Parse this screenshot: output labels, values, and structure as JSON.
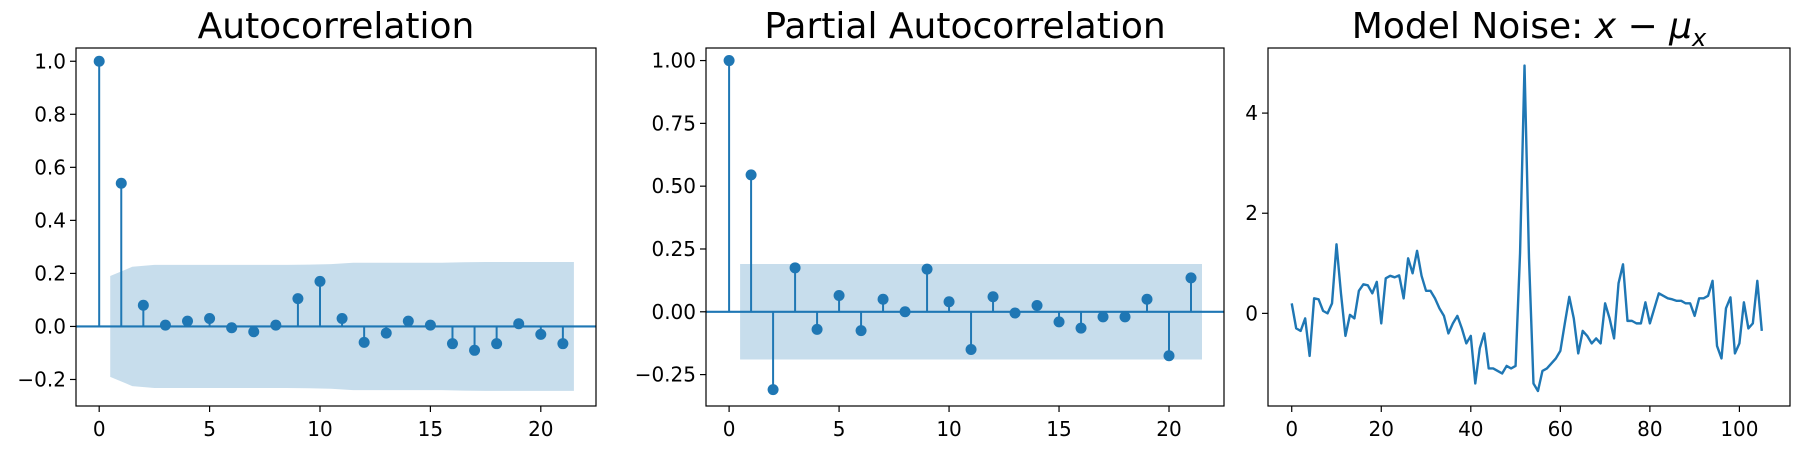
{
  "chart_data": [
    {
      "type": "stem",
      "title": "Autocorrelation",
      "xlabel": "",
      "ylabel": "",
      "xlim": [
        -1.05,
        22.5
      ],
      "ylim": [
        -0.3,
        1.05
      ],
      "xticks": [
        0,
        5,
        10,
        15,
        20
      ],
      "yticks": [
        -0.2,
        0.0,
        0.2,
        0.4,
        0.6,
        0.8,
        1.0
      ],
      "ytick_labels": [
        "−0.2",
        "0.0",
        "0.2",
        "0.4",
        "0.6",
        "0.8",
        "1.0"
      ],
      "xtick_labels": [
        "0",
        "5",
        "10",
        "15",
        "20"
      ],
      "color": "#1f77b4",
      "band_color": "#1f77b4",
      "lags": [
        0,
        1,
        2,
        3,
        4,
        5,
        6,
        7,
        8,
        9,
        10,
        11,
        12,
        13,
        14,
        15,
        16,
        17,
        18,
        19,
        20,
        21
      ],
      "values": [
        1.0,
        0.54,
        0.08,
        0.005,
        0.02,
        0.03,
        -0.005,
        -0.02,
        0.005,
        0.105,
        0.17,
        0.03,
        -0.06,
        -0.025,
        0.02,
        0.005,
        -0.065,
        -0.09,
        -0.065,
        0.01,
        -0.03,
        -0.065
      ],
      "confidence_band": {
        "x": [
          0.5,
          1.5,
          2.5,
          3.5,
          4.5,
          5.5,
          6.5,
          7.5,
          8.5,
          9.5,
          10.5,
          11.5,
          12.5,
          13.5,
          14.5,
          15.5,
          16.5,
          17.5,
          18.5,
          19.5,
          20.5,
          21.5
        ],
        "upper": [
          0.19,
          0.225,
          0.232,
          0.232,
          0.232,
          0.232,
          0.232,
          0.232,
          0.232,
          0.233,
          0.235,
          0.24,
          0.24,
          0.24,
          0.24,
          0.24,
          0.242,
          0.243,
          0.243,
          0.243,
          0.243,
          0.243
        ]
      }
    },
    {
      "type": "stem",
      "title": "Partial Autocorrelation",
      "xlabel": "",
      "ylabel": "",
      "xlim": [
        -1.05,
        22.5
      ],
      "ylim": [
        -0.375,
        1.05
      ],
      "xticks": [
        0,
        5,
        10,
        15,
        20
      ],
      "yticks": [
        -0.25,
        0.0,
        0.25,
        0.5,
        0.75,
        1.0
      ],
      "ytick_labels": [
        "−0.25",
        "0.00",
        "0.25",
        "0.50",
        "0.75",
        "1.00"
      ],
      "xtick_labels": [
        "0",
        "5",
        "10",
        "15",
        "20"
      ],
      "color": "#1f77b4",
      "band_color": "#1f77b4",
      "lags": [
        0,
        1,
        2,
        3,
        4,
        5,
        6,
        7,
        8,
        9,
        10,
        11,
        12,
        13,
        14,
        15,
        16,
        17,
        18,
        19,
        20,
        21
      ],
      "values": [
        1.0,
        0.545,
        -0.31,
        0.175,
        -0.07,
        0.065,
        -0.075,
        0.05,
        0.0,
        0.17,
        0.04,
        -0.15,
        0.06,
        -0.005,
        0.025,
        -0.04,
        -0.065,
        -0.02,
        -0.02,
        0.05,
        -0.175,
        0.135
      ],
      "confidence_band": {
        "x": [
          0.5,
          21.5
        ],
        "upper": [
          0.19,
          0.19
        ]
      }
    },
    {
      "type": "line",
      "title_prefix": "Model Noise: ",
      "title_math": "x − μ",
      "title_subscript": "x",
      "xlabel": "",
      "ylabel": "",
      "xlim": [
        -5.3,
        111.3
      ],
      "ylim": [
        -1.85,
        5.3
      ],
      "xticks": [
        0,
        20,
        40,
        60,
        80,
        100
      ],
      "yticks": [
        0,
        2,
        4
      ],
      "xtick_labels": [
        "0",
        "20",
        "40",
        "60",
        "80",
        "100"
      ],
      "ytick_labels": [
        "0",
        "2",
        "4"
      ],
      "color": "#1f77b4",
      "values": [
        0.2,
        -0.3,
        -0.35,
        -0.1,
        -0.85,
        0.3,
        0.28,
        0.05,
        0.0,
        0.2,
        1.38,
        0.4,
        -0.45,
        -0.03,
        -0.1,
        0.45,
        0.58,
        0.56,
        0.4,
        0.63,
        -0.2,
        0.7,
        0.75,
        0.72,
        0.76,
        0.3,
        1.1,
        0.8,
        1.25,
        0.75,
        0.45,
        0.45,
        0.3,
        0.1,
        -0.05,
        -0.4,
        -0.2,
        -0.05,
        -0.3,
        -0.6,
        -0.45,
        -1.4,
        -0.7,
        -0.4,
        -1.1,
        -1.1,
        -1.15,
        -1.2,
        -1.05,
        -1.1,
        -1.05,
        1.2,
        4.95,
        1.1,
        -1.4,
        -1.55,
        -1.15,
        -1.1,
        -1.0,
        -0.9,
        -0.75,
        -0.2,
        0.33,
        -0.1,
        -0.8,
        -0.35,
        -0.45,
        -0.6,
        -0.5,
        -0.6,
        0.2,
        -0.1,
        -0.5,
        0.6,
        0.98,
        -0.15,
        -0.15,
        -0.2,
        -0.2,
        0.22,
        -0.2,
        0.1,
        0.4,
        0.35,
        0.3,
        0.28,
        0.25,
        0.25,
        0.2,
        0.2,
        -0.05,
        0.3,
        0.3,
        0.35,
        0.65,
        -0.65,
        -0.9,
        0.1,
        0.32,
        -0.8,
        -0.6,
        0.22,
        -0.3,
        -0.2,
        0.65,
        -0.35
      ]
    }
  ]
}
